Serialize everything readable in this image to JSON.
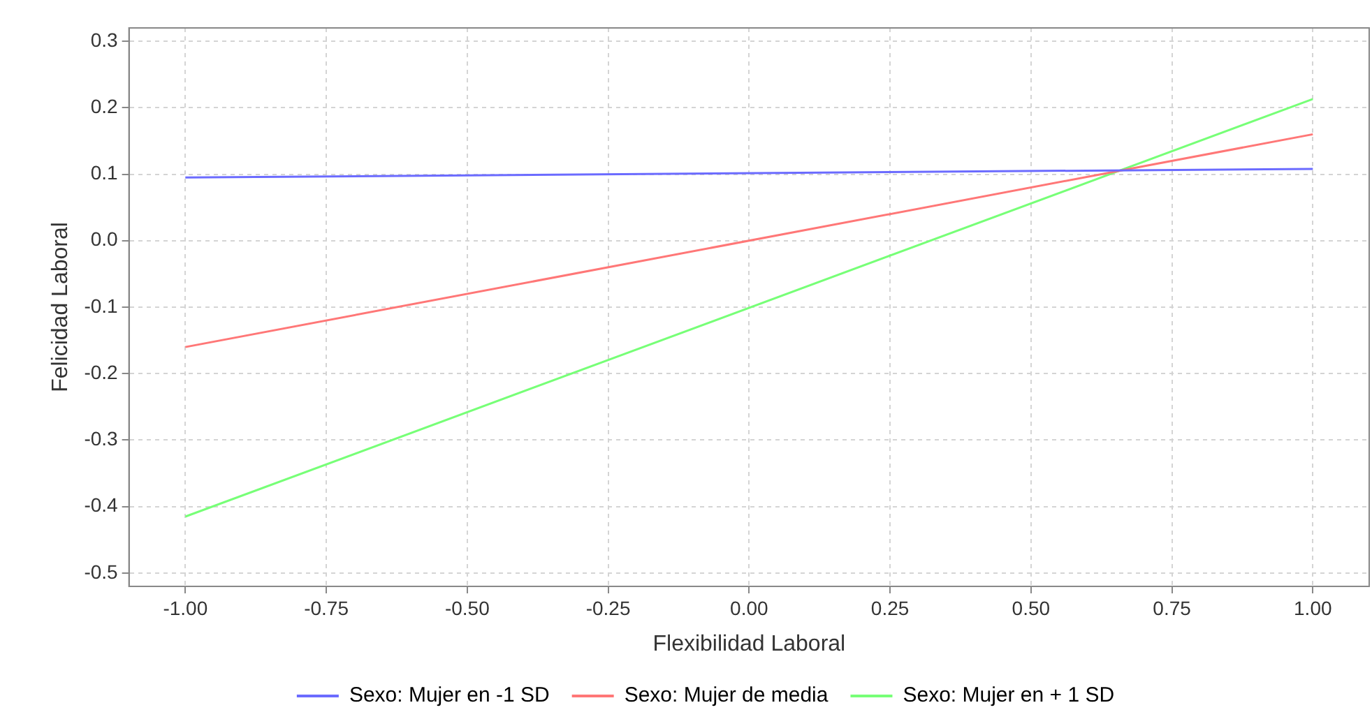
{
  "chart_data": {
    "type": "line",
    "xlabel": "Flexibilidad Laboral",
    "ylabel": "Felicidad Laboral",
    "x": [
      -1,
      1
    ],
    "series": [
      {
        "name": "Sexo: Mujer en -1 SD",
        "color": "#6b6bff",
        "values": [
          0.095,
          0.108
        ]
      },
      {
        "name": "Sexo: Mujer de media",
        "color": "#ff7777",
        "values": [
          -0.16,
          0.16
        ]
      },
      {
        "name": "Sexo: Mujer en + 1 SD",
        "color": "#77ff77",
        "values": [
          -0.415,
          0.213
        ]
      }
    ],
    "xlim": [
      -1.1,
      1.1
    ],
    "ylim": [
      -0.52,
      0.32
    ],
    "xticks": [
      {
        "value": -1,
        "label": "-1.00"
      },
      {
        "value": -0.75,
        "label": "-0.75"
      },
      {
        "value": -0.5,
        "label": "-0.50"
      },
      {
        "value": -0.25,
        "label": "-0.25"
      },
      {
        "value": 0,
        "label": "0.00"
      },
      {
        "value": 0.25,
        "label": "0.25"
      },
      {
        "value": 0.5,
        "label": "0.50"
      },
      {
        "value": 0.75,
        "label": "0.75"
      },
      {
        "value": 1,
        "label": "1.00"
      }
    ],
    "yticks": [
      {
        "value": -0.5,
        "label": "-0.5"
      },
      {
        "value": -0.4,
        "label": "-0.4"
      },
      {
        "value": -0.3,
        "label": "-0.3"
      },
      {
        "value": -0.2,
        "label": "-0.2"
      },
      {
        "value": -0.1,
        "label": "-0.1"
      },
      {
        "value": 0,
        "label": "0.0"
      },
      {
        "value": 0.1,
        "label": "0.1"
      },
      {
        "value": 0.2,
        "label": "0.2"
      },
      {
        "value": 0.3,
        "label": "0.3"
      }
    ],
    "grid": true,
    "legend": "bottom",
    "marker": "none",
    "line_style": "solid"
  }
}
